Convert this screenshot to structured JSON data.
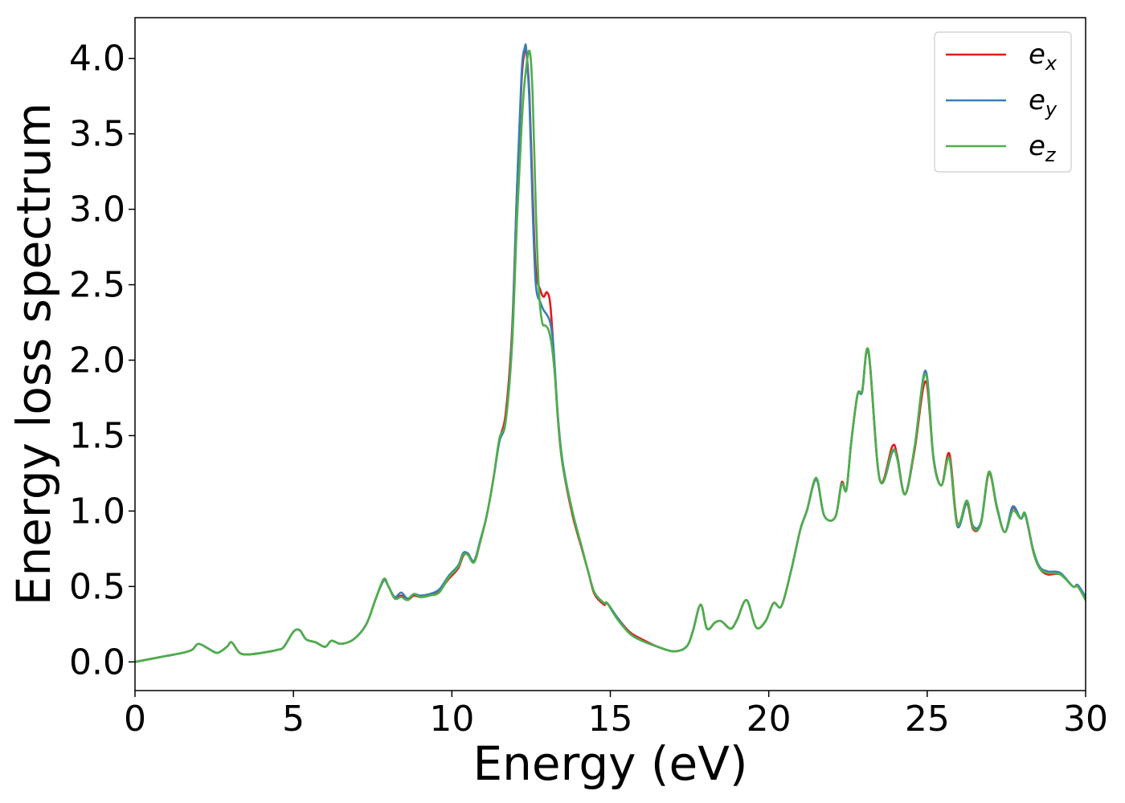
{
  "chart_data": {
    "type": "line",
    "xlabel": "Energy (eV)",
    "ylabel": "Energy loss spectrum",
    "xlim": [
      0,
      30
    ],
    "ylim": [
      -0.19,
      4.27
    ],
    "xticks": [
      0,
      5,
      10,
      15,
      20,
      25,
      30
    ],
    "yticks": [
      0.0,
      0.5,
      1.0,
      1.5,
      2.0,
      2.5,
      3.0,
      3.5,
      4.0
    ],
    "xtick_labels": [
      "0",
      "5",
      "10",
      "15",
      "20",
      "25",
      "30"
    ],
    "ytick_labels": [
      "0.0",
      "0.5",
      "1.0",
      "1.5",
      "2.0",
      "2.5",
      "3.0",
      "3.5",
      "4.0"
    ],
    "grid": false,
    "legend_position": "top-right",
    "series": [
      {
        "name": "e",
        "subscript": "x",
        "color": "#e41a1c",
        "x": [
          0,
          0.5,
          1,
          1.5,
          1.8,
          2,
          2.3,
          2.6,
          2.9,
          3.05,
          3.3,
          3.6,
          4,
          4.5,
          4.7,
          5,
          5.2,
          5.4,
          5.7,
          6,
          6.2,
          6.5,
          6.9,
          7.3,
          7.6,
          7.85,
          8,
          8.2,
          8.4,
          8.6,
          8.8,
          9,
          9.3,
          9.6,
          9.9,
          10.2,
          10.35,
          10.5,
          10.7,
          10.9,
          11.1,
          11.3,
          11.5,
          11.7,
          11.9,
          12.05,
          12.2,
          12.3,
          12.35,
          12.45,
          12.55,
          12.65,
          12.8,
          12.9,
          13,
          13.1,
          13.2,
          13.35,
          13.5,
          13.8,
          14.1,
          14.3,
          14.5,
          14.8,
          14.9,
          15.2,
          15.6,
          16,
          16.5,
          17,
          17.4,
          17.6,
          17.85,
          18.05,
          18.3,
          18.5,
          18.8,
          19,
          19.3,
          19.6,
          19.9,
          20.15,
          20.4,
          20.7,
          21,
          21.2,
          21.5,
          21.75,
          22.1,
          22.3,
          22.45,
          22.6,
          22.8,
          22.95,
          23.15,
          23.5,
          23.9,
          24.05,
          24.3,
          24.6,
          24.95,
          25.2,
          25.45,
          25.7,
          25.95,
          26.25,
          26.45,
          26.7,
          26.95,
          27.2,
          27.45,
          27.7,
          27.95,
          28.1,
          28.35,
          28.55,
          28.8,
          29.2,
          29.6,
          29.75,
          30
        ],
        "values": [
          0.0,
          0.02,
          0.04,
          0.06,
          0.08,
          0.12,
          0.09,
          0.06,
          0.1,
          0.13,
          0.06,
          0.05,
          0.06,
          0.08,
          0.1,
          0.2,
          0.21,
          0.15,
          0.13,
          0.1,
          0.14,
          0.12,
          0.15,
          0.25,
          0.42,
          0.54,
          0.5,
          0.42,
          0.44,
          0.41,
          0.44,
          0.43,
          0.44,
          0.47,
          0.55,
          0.62,
          0.7,
          0.72,
          0.66,
          0.8,
          0.97,
          1.2,
          1.47,
          1.65,
          2.2,
          3.1,
          3.85,
          4.05,
          4.05,
          3.75,
          3.1,
          2.6,
          2.46,
          2.42,
          2.45,
          2.38,
          2.1,
          1.6,
          1.3,
          0.98,
          0.75,
          0.6,
          0.45,
          0.38,
          0.39,
          0.3,
          0.2,
          0.15,
          0.1,
          0.07,
          0.1,
          0.2,
          0.38,
          0.22,
          0.26,
          0.27,
          0.22,
          0.28,
          0.41,
          0.23,
          0.27,
          0.39,
          0.37,
          0.6,
          0.88,
          1.0,
          1.21,
          0.97,
          0.96,
          1.19,
          1.14,
          1.45,
          1.77,
          1.8,
          2.05,
          1.21,
          1.43,
          1.37,
          1.11,
          1.4,
          1.86,
          1.35,
          1.17,
          1.38,
          0.92,
          1.05,
          0.88,
          0.92,
          1.25,
          1.02,
          0.86,
          1.02,
          0.95,
          0.97,
          0.73,
          0.62,
          0.58,
          0.58,
          0.5,
          0.5,
          0.42
        ]
      },
      {
        "name": "e",
        "subscript": "y",
        "color": "#377eb8",
        "x": [
          0,
          0.5,
          1,
          1.5,
          1.8,
          2,
          2.3,
          2.6,
          2.9,
          3.05,
          3.3,
          3.6,
          4,
          4.5,
          4.7,
          5,
          5.2,
          5.4,
          5.7,
          6,
          6.2,
          6.5,
          6.9,
          7.3,
          7.6,
          7.85,
          8,
          8.2,
          8.4,
          8.6,
          8.8,
          9,
          9.3,
          9.6,
          9.9,
          10.2,
          10.35,
          10.5,
          10.7,
          10.9,
          11.1,
          11.3,
          11.5,
          11.7,
          11.9,
          12.05,
          12.2,
          12.3,
          12.35,
          12.45,
          12.55,
          12.65,
          12.8,
          12.9,
          13,
          13.1,
          13.2,
          13.35,
          13.5,
          13.8,
          14.1,
          14.3,
          14.5,
          14.8,
          14.9,
          15.2,
          15.6,
          16,
          16.5,
          17,
          17.4,
          17.6,
          17.85,
          18.05,
          18.3,
          18.5,
          18.8,
          19,
          19.3,
          19.6,
          19.9,
          20.15,
          20.4,
          20.7,
          21,
          21.2,
          21.5,
          21.75,
          22.1,
          22.3,
          22.45,
          22.6,
          22.8,
          22.95,
          23.15,
          23.5,
          23.9,
          24.05,
          24.3,
          24.6,
          24.95,
          25.2,
          25.45,
          25.7,
          25.95,
          26.25,
          26.45,
          26.7,
          26.95,
          27.2,
          27.45,
          27.7,
          27.95,
          28.1,
          28.35,
          28.55,
          28.8,
          29.2,
          29.6,
          29.75,
          30
        ],
        "values": [
          0.0,
          0.02,
          0.04,
          0.06,
          0.08,
          0.12,
          0.09,
          0.06,
          0.1,
          0.13,
          0.06,
          0.05,
          0.06,
          0.08,
          0.1,
          0.2,
          0.21,
          0.15,
          0.13,
          0.1,
          0.14,
          0.12,
          0.15,
          0.25,
          0.42,
          0.54,
          0.5,
          0.43,
          0.46,
          0.42,
          0.45,
          0.44,
          0.45,
          0.48,
          0.57,
          0.64,
          0.72,
          0.72,
          0.67,
          0.81,
          0.97,
          1.2,
          1.46,
          1.6,
          2.15,
          3.1,
          3.9,
          4.07,
          4.05,
          3.7,
          3.0,
          2.5,
          2.38,
          2.33,
          2.3,
          2.25,
          2.1,
          1.62,
          1.32,
          1.0,
          0.76,
          0.6,
          0.46,
          0.39,
          0.39,
          0.3,
          0.19,
          0.14,
          0.1,
          0.07,
          0.1,
          0.2,
          0.38,
          0.22,
          0.26,
          0.27,
          0.22,
          0.28,
          0.41,
          0.23,
          0.27,
          0.39,
          0.37,
          0.6,
          0.88,
          1.0,
          1.21,
          0.97,
          0.96,
          1.18,
          1.14,
          1.45,
          1.77,
          1.79,
          2.06,
          1.21,
          1.39,
          1.36,
          1.11,
          1.42,
          1.93,
          1.35,
          1.17,
          1.35,
          0.9,
          1.05,
          0.9,
          0.93,
          1.26,
          1.03,
          0.86,
          1.03,
          0.95,
          0.97,
          0.74,
          0.63,
          0.6,
          0.59,
          0.5,
          0.51,
          0.43
        ]
      },
      {
        "name": "e",
        "subscript": "z",
        "color": "#4daf4a",
        "x": [
          0,
          0.5,
          1,
          1.5,
          1.8,
          2,
          2.3,
          2.6,
          2.9,
          3.05,
          3.3,
          3.6,
          4,
          4.5,
          4.7,
          5,
          5.2,
          5.4,
          5.7,
          6,
          6.2,
          6.5,
          6.9,
          7.3,
          7.6,
          7.85,
          8,
          8.2,
          8.4,
          8.6,
          8.8,
          9,
          9.3,
          9.6,
          9.9,
          10.2,
          10.35,
          10.5,
          10.7,
          10.9,
          11.1,
          11.3,
          11.5,
          11.7,
          11.9,
          12.05,
          12.2,
          12.3,
          12.45,
          12.55,
          12.65,
          12.75,
          12.85,
          12.95,
          13.05,
          13.15,
          13.25,
          13.35,
          13.5,
          13.8,
          14.1,
          14.3,
          14.5,
          14.8,
          14.9,
          15.2,
          15.6,
          16,
          16.5,
          17,
          17.4,
          17.6,
          17.85,
          18.05,
          18.3,
          18.5,
          18.8,
          19,
          19.3,
          19.6,
          19.9,
          20.15,
          20.4,
          20.7,
          21,
          21.2,
          21.5,
          21.75,
          22.1,
          22.3,
          22.45,
          22.6,
          22.8,
          22.95,
          23.15,
          23.5,
          23.9,
          24.05,
          24.3,
          24.6,
          24.95,
          25.2,
          25.45,
          25.7,
          25.95,
          26.25,
          26.45,
          26.7,
          26.95,
          27.2,
          27.45,
          27.7,
          27.95,
          28.1,
          28.35,
          28.55,
          28.8,
          29.2,
          29.6,
          29.75,
          30
        ],
        "values": [
          0.0,
          0.02,
          0.04,
          0.06,
          0.08,
          0.12,
          0.09,
          0.06,
          0.1,
          0.13,
          0.06,
          0.05,
          0.06,
          0.08,
          0.1,
          0.2,
          0.21,
          0.15,
          0.13,
          0.1,
          0.14,
          0.12,
          0.15,
          0.25,
          0.42,
          0.55,
          0.5,
          0.42,
          0.43,
          0.41,
          0.45,
          0.43,
          0.44,
          0.46,
          0.56,
          0.63,
          0.71,
          0.71,
          0.66,
          0.8,
          0.97,
          1.2,
          1.48,
          1.6,
          2.1,
          2.9,
          3.55,
          3.85,
          4.05,
          3.75,
          3.0,
          2.45,
          2.25,
          2.23,
          2.2,
          2.1,
          1.9,
          1.6,
          1.3,
          1.0,
          0.76,
          0.6,
          0.46,
          0.39,
          0.39,
          0.29,
          0.19,
          0.14,
          0.1,
          0.07,
          0.1,
          0.2,
          0.38,
          0.22,
          0.26,
          0.27,
          0.22,
          0.28,
          0.41,
          0.23,
          0.27,
          0.39,
          0.37,
          0.6,
          0.88,
          1.0,
          1.22,
          0.97,
          0.96,
          1.18,
          1.14,
          1.45,
          1.77,
          1.8,
          2.06,
          1.21,
          1.4,
          1.35,
          1.11,
          1.42,
          1.91,
          1.34,
          1.17,
          1.35,
          0.91,
          1.07,
          0.89,
          0.92,
          1.26,
          1.02,
          0.86,
          1.0,
          0.95,
          0.98,
          0.73,
          0.62,
          0.59,
          0.58,
          0.5,
          0.5,
          0.41
        ]
      }
    ]
  }
}
